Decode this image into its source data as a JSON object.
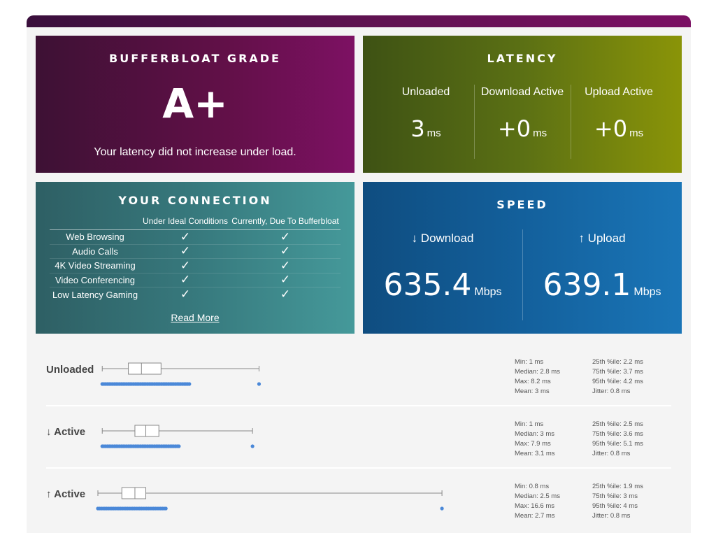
{
  "grade": {
    "title": "BUFFERBLOAT GRADE",
    "letter": "A+",
    "description": "Your latency did not increase under load."
  },
  "latency": {
    "title": "LATENCY",
    "columns": [
      {
        "label": "Unloaded",
        "value": "3",
        "unit": "ms"
      },
      {
        "label": "Download Active",
        "value": "+0",
        "unit": "ms"
      },
      {
        "label": "Upload Active",
        "value": "+0",
        "unit": "ms"
      }
    ]
  },
  "connection": {
    "title": "YOUR CONNECTION",
    "headers": [
      "",
      "Under Ideal Conditions",
      "Currently, Due To Bufferbloat"
    ],
    "rows": [
      {
        "label": "Web Browsing",
        "ideal": "✓",
        "current": "✓"
      },
      {
        "label": "Audio Calls",
        "ideal": "✓",
        "current": "✓"
      },
      {
        "label": "4K Video Streaming",
        "ideal": "✓",
        "current": "✓"
      },
      {
        "label": "Video Conferencing",
        "ideal": "✓",
        "current": "✓"
      },
      {
        "label": "Low Latency Gaming",
        "ideal": "✓",
        "current": "✓"
      }
    ],
    "read_more": "Read More"
  },
  "speed": {
    "title": "SPEED",
    "download": {
      "label": "↓ Download",
      "value": "635.4",
      "unit": "Mbps"
    },
    "upload": {
      "label": "↑ Upload",
      "value": "639.1",
      "unit": "Mbps"
    }
  },
  "boxplots": [
    {
      "label": "Unloaded",
      "min": 1,
      "q1": 2.2,
      "median": 2.8,
      "q3": 3.7,
      "max": 8.2,
      "stats_left": [
        "Min: 1 ms",
        "Median: 2.8 ms",
        "Max: 8.2 ms",
        "Mean: 3 ms"
      ],
      "stats_right": [
        "25th %ile: 2.2 ms",
        "75th %ile: 3.7 ms",
        "95th %ile: 4.2 ms",
        "Jitter: 0.8 ms"
      ]
    },
    {
      "label": "↓ Active",
      "min": 1,
      "q1": 2.5,
      "median": 3,
      "q3": 3.6,
      "max": 7.9,
      "stats_left": [
        "Min: 1 ms",
        "Median: 3 ms",
        "Max: 7.9 ms",
        "Mean: 3.1 ms"
      ],
      "stats_right": [
        "25th %ile: 2.5 ms",
        "75th %ile: 3.6 ms",
        "95th %ile: 5.1 ms",
        "Jitter: 0.8 ms"
      ]
    },
    {
      "label": "↑ Active",
      "min": 0.8,
      "q1": 1.9,
      "median": 2.5,
      "q3": 3,
      "max": 16.6,
      "stats_left": [
        "Min: 0.8 ms",
        "Median: 2.5 ms",
        "Max: 16.6 ms",
        "Mean: 2.7 ms"
      ],
      "stats_right": [
        "25th %ile: 1.9 ms",
        "75th %ile: 3 ms",
        "95th %ile: 4 ms",
        "Jitter: 0.8 ms"
      ]
    }
  ],
  "colors": {
    "grade_bg": "#621048",
    "latency_bg": "#5b7014",
    "connection_bg": "#37797d",
    "speed_bg": "#13609c",
    "point_color": "#4a88d8"
  }
}
